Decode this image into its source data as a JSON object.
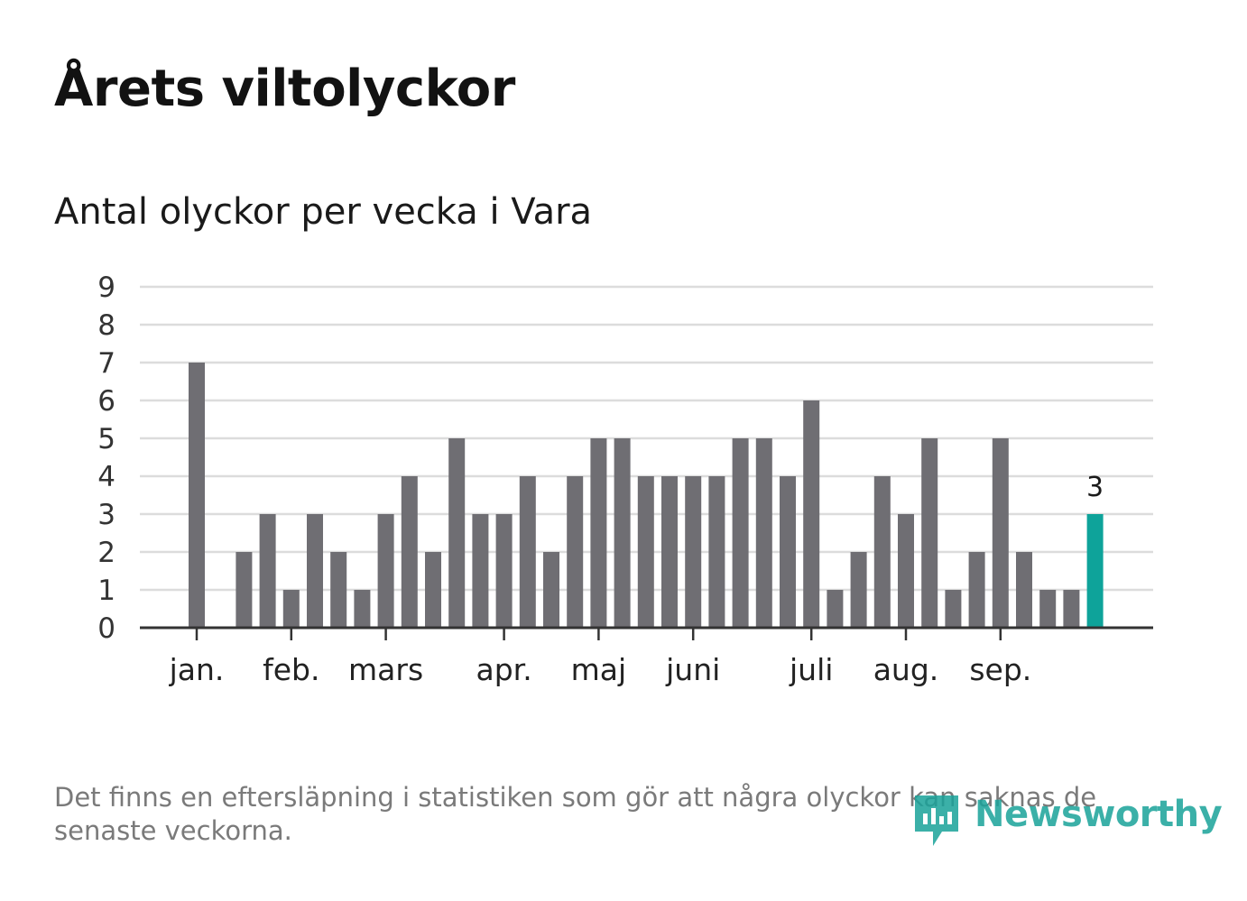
{
  "title": "Årets viltolyckor",
  "subtitle": "Antal olyckor per vecka i Vara",
  "note": "Det finns en eftersläpning i statistiken som gör att några olyckor kan saknas de senaste veckorna.",
  "brand": {
    "name": "Newsworthy",
    "icon": "newsworthy-logo-icon",
    "color": "#1aa39a"
  },
  "colors": {
    "bar": "#6f6e73",
    "highlight": "#0ea39a",
    "grid": "#dcdcdc",
    "axis": "#333333"
  },
  "chart_data": {
    "type": "bar",
    "title": "Antal olyckor per vecka i Vara",
    "xlabel": "",
    "ylabel": "",
    "ylim": [
      0,
      9
    ],
    "yticks": [
      0,
      1,
      2,
      3,
      4,
      5,
      6,
      7,
      8,
      9
    ],
    "grid": true,
    "weeks": [
      1,
      2,
      3,
      4,
      5,
      6,
      7,
      8,
      9,
      10,
      11,
      12,
      13,
      14,
      15,
      16,
      17,
      18,
      19,
      20,
      21,
      22,
      23,
      24,
      25,
      26,
      27,
      28,
      29,
      30,
      31,
      32,
      33,
      34,
      35,
      36,
      37,
      38,
      39
    ],
    "values": [
      7,
      0,
      2,
      3,
      1,
      3,
      2,
      1,
      3,
      4,
      2,
      5,
      3,
      3,
      4,
      2,
      4,
      5,
      5,
      4,
      4,
      4,
      4,
      5,
      5,
      4,
      6,
      1,
      2,
      4,
      3,
      5,
      1,
      2,
      5,
      2,
      1,
      1,
      3
    ],
    "highlight_index": 38,
    "highlight_label": "3",
    "month_ticks": [
      {
        "label": "jan.",
        "week": 1
      },
      {
        "label": "feb.",
        "week": 5
      },
      {
        "label": "mars",
        "week": 9
      },
      {
        "label": "apr.",
        "week": 14
      },
      {
        "label": "maj",
        "week": 18
      },
      {
        "label": "juni",
        "week": 22
      },
      {
        "label": "juli",
        "week": 27
      },
      {
        "label": "aug.",
        "week": 31
      },
      {
        "label": "sep.",
        "week": 35
      }
    ]
  }
}
